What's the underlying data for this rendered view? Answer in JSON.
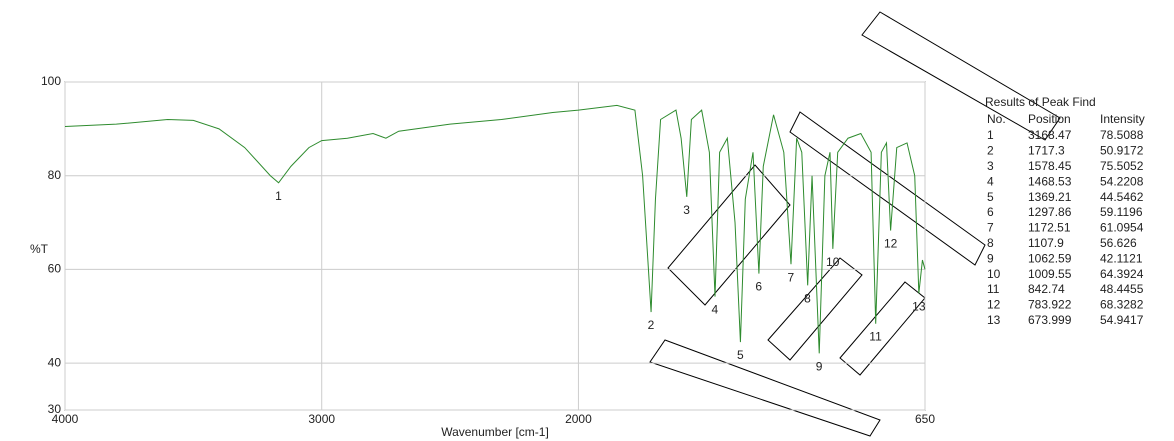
{
  "chart_data": {
    "type": "line",
    "xlabel": "Wavenumber [cm-1]",
    "ylabel": "%T",
    "x": [
      4000,
      3800,
      3600,
      3500,
      3400,
      3300,
      3200,
      3168,
      3120,
      3050,
      3000,
      2900,
      2800,
      2750,
      2700,
      2500,
      2300,
      2100,
      2000,
      1850,
      1780,
      1750,
      1717,
      1700,
      1680,
      1620,
      1600,
      1578,
      1560,
      1520,
      1490,
      1468,
      1450,
      1420,
      1390,
      1369,
      1350,
      1320,
      1297,
      1280,
      1240,
      1200,
      1172,
      1150,
      1130,
      1107,
      1090,
      1062,
      1040,
      1020,
      1009,
      990,
      950,
      900,
      860,
      842,
      820,
      800,
      784,
      760,
      720,
      690,
      674,
      660,
      650
    ],
    "series": [
      {
        "color": "#2e8b2e",
        "values": [
          90.5,
          91,
          92,
          91.8,
          90,
          86,
          80,
          78.5,
          82,
          86,
          87.5,
          88,
          89,
          88,
          89.5,
          91,
          92,
          93.5,
          94,
          95,
          94,
          80,
          50.9,
          75,
          92,
          94,
          88,
          75.5,
          92,
          94,
          85,
          54.2,
          85,
          88,
          70,
          44.5,
          75,
          85,
          59.1,
          82,
          93,
          85,
          61.1,
          88,
          85,
          56.6,
          80,
          42.1,
          80,
          85,
          64.4,
          85,
          88,
          89,
          85,
          48.4,
          85,
          87,
          68.3,
          86,
          87,
          80,
          54.9,
          62,
          60
        ]
      }
    ],
    "xlim": [
      4000,
      650
    ],
    "xticks": [
      4000,
      3000,
      2000,
      650
    ],
    "ylim": [
      30,
      100
    ],
    "yticks": [
      30,
      40,
      60,
      80,
      100
    ],
    "grid": true
  },
  "table": {
    "title": "Results of Peak Find",
    "headers": [
      "No.",
      "Position",
      "Intensity"
    ],
    "rows": [
      [
        1,
        3168.47,
        78.5088
      ],
      [
        2,
        1717.3,
        50.9172
      ],
      [
        3,
        1578.45,
        75.5052
      ],
      [
        4,
        1468.53,
        54.2208
      ],
      [
        5,
        1369.21,
        44.5462
      ],
      [
        6,
        1297.86,
        59.1196
      ],
      [
        7,
        1172.51,
        61.0954
      ],
      [
        8,
        1107.9,
        56.626
      ],
      [
        9,
        1062.59,
        42.1121
      ],
      [
        10,
        1009.55,
        64.3924
      ],
      [
        11,
        842.74,
        48.4455
      ],
      [
        12,
        783.922,
        68.3282
      ],
      [
        13,
        673.999,
        54.9417
      ]
    ]
  }
}
